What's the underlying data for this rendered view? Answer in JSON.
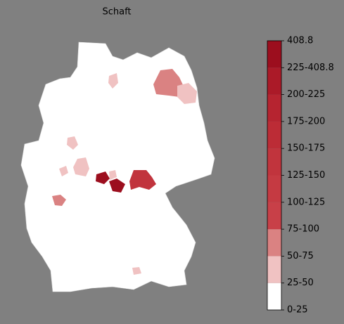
{
  "title": "Schaft",
  "legend": {
    "labels": [
      "0-25",
      "25-50",
      "50-75",
      "75-100",
      "100-125",
      "125-150",
      "150-175",
      "175-200",
      "200-225",
      "225-408.8",
      "408.8"
    ],
    "colors": [
      "#ffffff",
      "#f0c2c2",
      "#da8282",
      "#c84048",
      "#c53a42",
      "#c1343d",
      "#bc2c36",
      "#b62430",
      "#ab1a28",
      "#9c0e1e"
    ]
  }
}
